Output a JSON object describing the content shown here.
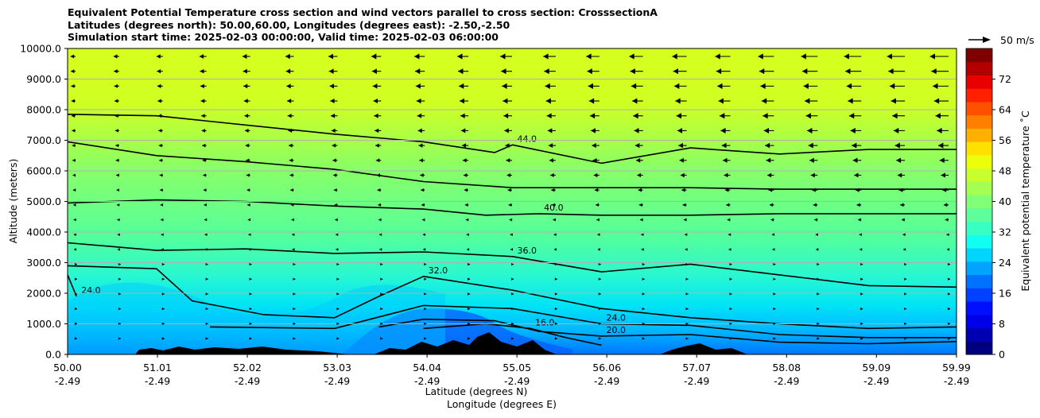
{
  "title_lines": [
    "Equivalent Potential Temperature cross section and wind vectors parallel to cross section: CrosssectionA",
    "Latitudes (degrees north): 50.00,60.00, Longitudes (degrees east): -2.50,-2.50",
    "Simulation start time: 2025-02-03 00:00:00, Valid time: 2025-02-03 06:00:00"
  ],
  "chart_data": {
    "type": "contour-cross-section",
    "ylabel": "Altitude (meters)",
    "xlabel_line1": "Latitude (degrees N)",
    "xlabel_line2": "Longitude (degrees E)",
    "ylim": [
      0,
      10000
    ],
    "y_ticks": [
      "0.0",
      "1000.0",
      "2000.0",
      "3000.0",
      "4000.0",
      "5000.0",
      "6000.0",
      "7000.0",
      "8000.0",
      "9000.0",
      "10000.0"
    ],
    "y_tick_values": [
      0,
      1000,
      2000,
      3000,
      4000,
      5000,
      6000,
      7000,
      8000,
      9000,
      10000
    ],
    "x_ticks_lat": [
      "50.00",
      "51.01",
      "52.02",
      "53.03",
      "54.04",
      "55.05",
      "56.06",
      "57.07",
      "58.08",
      "59.09",
      "59.99"
    ],
    "x_ticks_lon": [
      "-2.49",
      "-2.49",
      "-2.49",
      "-2.49",
      "-2.49",
      "-2.49",
      "-2.49",
      "-2.49",
      "-2.49",
      "-2.49",
      "-2.49"
    ],
    "x_tick_values": [
      50.0,
      51.01,
      52.02,
      53.03,
      54.04,
      55.05,
      56.06,
      57.07,
      58.08,
      59.09,
      59.99
    ],
    "xlim": [
      50.0,
      59.99
    ],
    "grid": "horizontal",
    "colorbar": {
      "label": "Equivalent potential temperature ˚C",
      "range": [
        0,
        80
      ],
      "ticks": [
        "0",
        "8",
        "16",
        "24",
        "32",
        "40",
        "48",
        "56",
        "64",
        "72"
      ],
      "tick_values": [
        0,
        8,
        16,
        24,
        32,
        40,
        48,
        56,
        64,
        72
      ],
      "colormap": "jet"
    },
    "quiver_key": {
      "label": "50 m/s"
    },
    "contours": [
      {
        "level": 44.0,
        "label": "44.0",
        "points": [
          [
            50.0,
            7850
          ],
          [
            51.0,
            7800
          ],
          [
            52.0,
            7500
          ],
          [
            53.0,
            7200
          ],
          [
            54.0,
            6950
          ],
          [
            54.8,
            6600
          ],
          [
            55.0,
            6850
          ],
          [
            56.0,
            6250
          ],
          [
            57.0,
            6750
          ],
          [
            58.0,
            6550
          ],
          [
            59.0,
            6700
          ],
          [
            59.99,
            6700
          ]
        ]
      },
      {
        "level": 42.0,
        "label": "",
        "points": [
          [
            50.0,
            6950
          ],
          [
            51.0,
            6500
          ],
          [
            52.0,
            6300
          ],
          [
            53.0,
            6050
          ],
          [
            54.0,
            5650
          ],
          [
            55.0,
            5450
          ],
          [
            56.0,
            5450
          ],
          [
            57.0,
            5450
          ],
          [
            58.0,
            5400
          ],
          [
            59.0,
            5400
          ],
          [
            59.99,
            5400
          ]
        ]
      },
      {
        "level": 40.0,
        "label": "40.0",
        "points": [
          [
            50.0,
            4950
          ],
          [
            51.0,
            5050
          ],
          [
            52.0,
            5000
          ],
          [
            53.0,
            4850
          ],
          [
            54.0,
            4750
          ],
          [
            54.7,
            4550
          ],
          [
            55.3,
            4600
          ],
          [
            56.0,
            4550
          ],
          [
            57.0,
            4550
          ],
          [
            58.0,
            4600
          ],
          [
            59.0,
            4600
          ],
          [
            59.99,
            4600
          ]
        ]
      },
      {
        "level": 36.0,
        "label": "36.0",
        "points": [
          [
            50.0,
            3650
          ],
          [
            51.0,
            3400
          ],
          [
            52.0,
            3450
          ],
          [
            53.0,
            3300
          ],
          [
            54.0,
            3350
          ],
          [
            55.0,
            3200
          ],
          [
            56.0,
            2700
          ],
          [
            57.0,
            2950
          ],
          [
            58.0,
            2600
          ],
          [
            59.0,
            2250
          ],
          [
            59.99,
            2200
          ]
        ]
      },
      {
        "level": 32.0,
        "label": "32.0",
        "points": [
          [
            50.0,
            2900
          ],
          [
            51.0,
            2800
          ],
          [
            51.4,
            1750
          ],
          [
            52.2,
            1300
          ],
          [
            53.0,
            1200
          ],
          [
            53.5,
            1900
          ],
          [
            54.0,
            2550
          ],
          [
            55.0,
            2100
          ],
          [
            56.0,
            1500
          ],
          [
            57.0,
            1200
          ],
          [
            58.0,
            1000
          ],
          [
            59.0,
            850
          ],
          [
            59.99,
            900
          ]
        ]
      },
      {
        "level": 24.0,
        "label": "24.0",
        "points": [
          [
            51.6,
            900
          ],
          [
            53.0,
            850
          ],
          [
            54.0,
            1600
          ],
          [
            55.0,
            1500
          ],
          [
            56.0,
            1000
          ],
          [
            57.0,
            950
          ],
          [
            58.0,
            650
          ],
          [
            59.0,
            550
          ],
          [
            59.99,
            550
          ]
        ]
      },
      {
        "level": 20.0,
        "label": "20.0",
        "points": [
          [
            53.5,
            900
          ],
          [
            54.0,
            1150
          ],
          [
            54.8,
            1100
          ],
          [
            55.3,
            750
          ],
          [
            56.0,
            600
          ],
          [
            57.0,
            650
          ],
          [
            58.0,
            400
          ],
          [
            59.0,
            350
          ],
          [
            59.99,
            420
          ]
        ]
      },
      {
        "level": 16.0,
        "label": "16.0",
        "points": [
          [
            54.0,
            850
          ],
          [
            54.7,
            1000
          ],
          [
            55.2,
            850
          ],
          [
            55.6,
            550
          ],
          [
            56.0,
            300
          ]
        ]
      },
      {
        "level": 24.0,
        "label": "24.0",
        "points": [
          [
            50.0,
            2600
          ],
          [
            50.1,
            1900
          ]
        ]
      }
    ],
    "wind_vectors": "rightward-light in lower/southern region, strong northward-to-southward (leftward) arrows up to about 20 m/s in upper levels north of 55N"
  }
}
